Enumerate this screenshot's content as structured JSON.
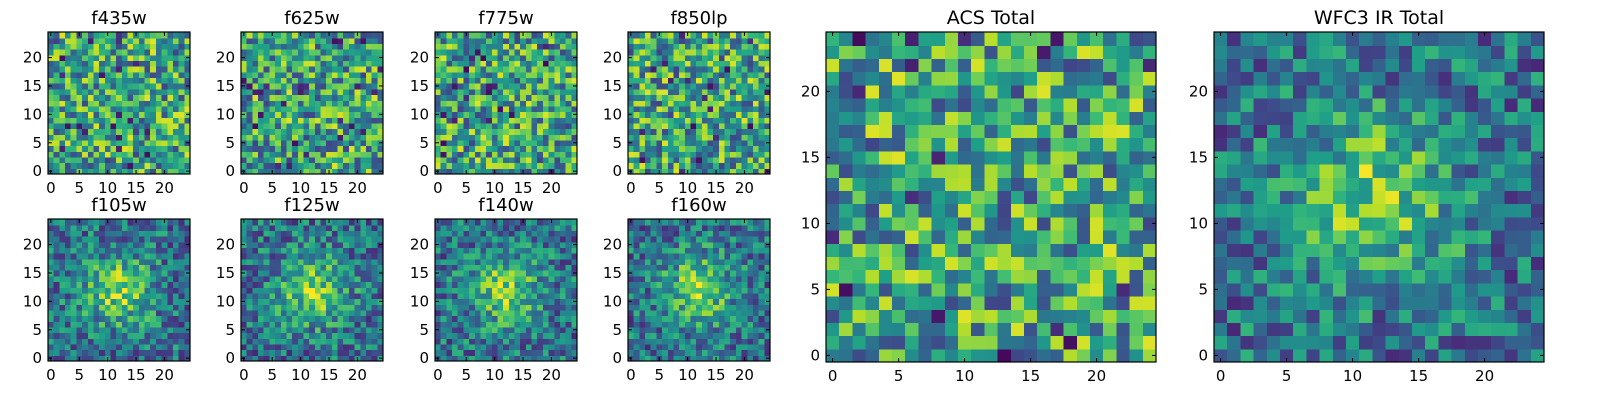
{
  "figure_caption": "",
  "colormap": {
    "name": "viridis",
    "stops": [
      "#440154",
      "#482878",
      "#3e4989",
      "#31688e",
      "#26828e",
      "#1f9e89",
      "#35b779",
      "#6ece58",
      "#b5de2b",
      "#fde725"
    ]
  },
  "chart_data": [
    {
      "type": "heatmap",
      "title": "f435w",
      "grid_size": 25,
      "x_ticks": [
        0,
        5,
        10,
        15,
        20
      ],
      "y_ticks": [
        0,
        5,
        10,
        15,
        20
      ],
      "xlim": [
        0,
        24
      ],
      "ylim": [
        0,
        24
      ],
      "source_profile": "noise",
      "seed": 11
    },
    {
      "type": "heatmap",
      "title": "f625w",
      "grid_size": 25,
      "x_ticks": [
        0,
        5,
        10,
        15,
        20
      ],
      "y_ticks": [
        0,
        5,
        10,
        15,
        20
      ],
      "xlim": [
        0,
        24
      ],
      "ylim": [
        0,
        24
      ],
      "source_profile": "noise",
      "seed": 23
    },
    {
      "type": "heatmap",
      "title": "f775w",
      "grid_size": 25,
      "x_ticks": [
        0,
        5,
        10,
        15,
        20
      ],
      "y_ticks": [
        0,
        5,
        10,
        15,
        20
      ],
      "xlim": [
        0,
        24
      ],
      "ylim": [
        0,
        24
      ],
      "source_profile": "noise",
      "seed": 37
    },
    {
      "type": "heatmap",
      "title": "f850lp",
      "grid_size": 25,
      "x_ticks": [
        0,
        5,
        10,
        15,
        20
      ],
      "y_ticks": [
        0,
        5,
        10,
        15,
        20
      ],
      "xlim": [
        0,
        24
      ],
      "ylim": [
        0,
        24
      ],
      "source_profile": "noise",
      "seed": 41
    },
    {
      "type": "heatmap",
      "title": "f105w",
      "grid_size": 25,
      "x_ticks": [
        0,
        5,
        10,
        15,
        20
      ],
      "y_ticks": [
        0,
        5,
        10,
        15,
        20
      ],
      "xlim": [
        0,
        24
      ],
      "ylim": [
        0,
        24
      ],
      "source_profile": "centered",
      "seed": 53
    },
    {
      "type": "heatmap",
      "title": "f125w",
      "grid_size": 25,
      "x_ticks": [
        0,
        5,
        10,
        15,
        20
      ],
      "y_ticks": [
        0,
        5,
        10,
        15,
        20
      ],
      "xlim": [
        0,
        24
      ],
      "ylim": [
        0,
        24
      ],
      "source_profile": "centered",
      "seed": 67
    },
    {
      "type": "heatmap",
      "title": "f140w",
      "grid_size": 25,
      "x_ticks": [
        0,
        5,
        10,
        15,
        20
      ],
      "y_ticks": [
        0,
        5,
        10,
        15,
        20
      ],
      "xlim": [
        0,
        24
      ],
      "ylim": [
        0,
        24
      ],
      "source_profile": "centered",
      "seed": 71
    },
    {
      "type": "heatmap",
      "title": "f160w",
      "grid_size": 25,
      "x_ticks": [
        0,
        5,
        10,
        15,
        20
      ],
      "y_ticks": [
        0,
        5,
        10,
        15,
        20
      ],
      "xlim": [
        0,
        24
      ],
      "ylim": [
        0,
        24
      ],
      "source_profile": "centered",
      "seed": 89
    },
    {
      "type": "heatmap",
      "title": "ACS Total",
      "grid_size": 25,
      "x_ticks": [
        0,
        5,
        10,
        15,
        20
      ],
      "y_ticks": [
        0,
        5,
        10,
        15,
        20
      ],
      "xlim": [
        0,
        24
      ],
      "ylim": [
        0,
        24
      ],
      "source_profile": "noise",
      "seed": 97
    },
    {
      "type": "heatmap",
      "title": "WFC3 IR Total",
      "grid_size": 25,
      "x_ticks": [
        0,
        5,
        10,
        15,
        20
      ],
      "y_ticks": [
        0,
        5,
        10,
        15,
        20
      ],
      "xlim": [
        0,
        24
      ],
      "ylim": [
        0,
        24
      ],
      "source_profile": "centered",
      "seed": 101
    }
  ]
}
